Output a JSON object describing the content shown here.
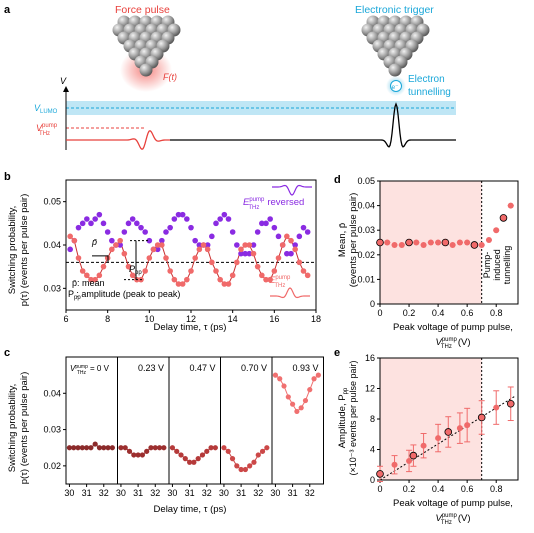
{
  "panel_a": {
    "letter": "a",
    "force_pulse": "Force pulse",
    "force_label": "F(t)",
    "electronic_trigger": "Electronic trigger",
    "electron_line1": "Electron",
    "electron_line2": "tunnelling",
    "electron_symbol": "e⁻",
    "v_axis": "V",
    "v_lumo": "V",
    "v_lumo_sub": "LUMO",
    "v_thz": "V",
    "v_thz_sup": "pump",
    "v_thz_sub": "THz",
    "colors": {
      "red": "#e8413c",
      "blue": "#1aa7d9",
      "band": "#bfe6f5"
    }
  },
  "panel_b": {
    "letter": "b",
    "ylabel1": "Switching probability,",
    "ylabel2": "p(τ) (events per pulse pair)",
    "xlabel": "Delay time, τ (ps)",
    "xticks": [
      "6",
      "8",
      "10",
      "12",
      "14",
      "16",
      "18"
    ],
    "yticks": [
      "0.03",
      "0.04",
      "0.05"
    ],
    "legend_mean": "p̄: mean",
    "legend_pp": "P   : amplitude (peak to peak)",
    "legend_pp_sub": "pp",
    "pbar": "p̄",
    "ppp": "P",
    "ppp_sub": "pp",
    "e_rev": "E",
    "e_rev_sup": "pump",
    "e_rev_sub": "THz",
    "reversed": "reversed",
    "e_norm": "E",
    "e_norm_sup": "pump",
    "e_norm_sub": "THz"
  },
  "panel_c": {
    "letter": "c",
    "ylabel1": "Switching probability,",
    "ylabel2": "p(τ) (events per pulse pair)",
    "xlabel": "Delay time, τ (ps)",
    "yticks": [
      "0.02",
      "0.03",
      "0.04"
    ],
    "xticks": [
      "30",
      "31",
      "32"
    ],
    "first_label_prefix": "V",
    "first_label_sup": "pump",
    "first_label_sub": "THz",
    "voltages": [
      "= 0 V",
      "0.23 V",
      "0.47 V",
      "0.70 V",
      "0.93 V"
    ]
  },
  "panel_d": {
    "letter": "d",
    "ylabel1": "Mean, p̄",
    "ylabel2": "(events per pulse pair)",
    "xlabel1": "Peak voltage of pump pulse,",
    "xlabel2": "V",
    "xlabel2_sup": "pump",
    "xlabel2_sub": "THz",
    "xlabel2_unit": "(V)",
    "xticks": [
      "0",
      "0.2",
      "0.4",
      "0.6",
      "0.8"
    ],
    "yticks": [
      "0",
      "0.01",
      "0.02",
      "0.03",
      "0.04",
      "0.05"
    ],
    "annot": [
      "Pump-",
      "induced",
      "tunnelling"
    ]
  },
  "panel_e": {
    "letter": "e",
    "ylabel1": "Amplitude, P",
    "ylabel1_sub": "pp",
    "ylabel2": "(×10⁻³ events per pulse pair)",
    "xlabel1": "Peak voltage of pump pulse,",
    "xlabel2": "V",
    "xlabel2_sup": "pump",
    "xlabel2_sub": "THz",
    "xlabel2_unit": "(V)",
    "xticks": [
      "0",
      "0.2",
      "0.4",
      "0.6",
      "0.8"
    ],
    "yticks": [
      "0",
      "4",
      "8",
      "12",
      "16"
    ]
  },
  "chart_data": [
    {
      "panel": "b",
      "type": "scatter",
      "xlabel": "Delay time, τ (ps)",
      "ylabel": "Switching probability, p(τ) (events per pulse pair)",
      "xlim": [
        6,
        18
      ],
      "ylim": [
        0.025,
        0.055
      ],
      "series": [
        {
          "name": "E_THz^pump reversed",
          "color": "#8a2be2",
          "x": [
            6.2,
            6.4,
            6.6,
            6.8,
            7.0,
            7.2,
            7.4,
            7.6,
            7.8,
            8.0,
            8.2,
            8.4,
            8.6,
            8.8,
            9.0,
            9.2,
            9.4,
            9.6,
            9.8,
            10.0,
            10.2,
            10.4,
            10.6,
            10.8,
            11.0,
            11.2,
            11.4,
            11.6,
            11.8,
            12.0,
            12.2,
            12.4,
            12.6,
            12.8,
            13.0,
            13.2,
            13.4,
            13.6,
            13.8,
            14.0,
            14.2,
            14.4,
            14.6,
            14.8,
            15.0,
            15.2,
            15.4,
            15.6,
            15.8,
            16.0,
            16.2,
            16.4,
            16.6,
            16.8,
            17.0,
            17.2,
            17.4,
            17.6
          ],
          "y": [
            0.039,
            0.041,
            0.044,
            0.045,
            0.046,
            0.045,
            0.046,
            0.047,
            0.045,
            0.043,
            0.041,
            0.04,
            0.04,
            0.043,
            0.045,
            0.046,
            0.045,
            0.044,
            0.043,
            0.041,
            0.039,
            0.039,
            0.041,
            0.043,
            0.044,
            0.046,
            0.047,
            0.047,
            0.046,
            0.044,
            0.041,
            0.04,
            0.04,
            0.04,
            0.042,
            0.045,
            0.046,
            0.047,
            0.046,
            0.043,
            0.04,
            0.038,
            0.038,
            0.038,
            0.04,
            0.043,
            0.045,
            0.045,
            0.046,
            0.044,
            0.042,
            0.04,
            0.038,
            0.038,
            0.04,
            0.042,
            0.044,
            0.043
          ]
        },
        {
          "name": "E_THz^pump",
          "color": "#f06a6a",
          "x": [
            6.2,
            6.4,
            6.6,
            6.8,
            7.0,
            7.2,
            7.4,
            7.6,
            7.8,
            8.0,
            8.2,
            8.4,
            8.6,
            8.8,
            9.0,
            9.2,
            9.4,
            9.6,
            9.8,
            10.0,
            10.2,
            10.4,
            10.6,
            10.8,
            11.0,
            11.2,
            11.4,
            11.6,
            11.8,
            12.0,
            12.2,
            12.4,
            12.6,
            12.8,
            13.0,
            13.2,
            13.4,
            13.6,
            13.8,
            14.0,
            14.2,
            14.4,
            14.6,
            14.8,
            15.0,
            15.2,
            15.4,
            15.6,
            15.8,
            16.0,
            16.2,
            16.4,
            16.6,
            16.8,
            17.0,
            17.2,
            17.4,
            17.6
          ],
          "y": [
            0.042,
            0.041,
            0.037,
            0.034,
            0.033,
            0.032,
            0.032,
            0.033,
            0.035,
            0.037,
            0.039,
            0.04,
            0.041,
            0.038,
            0.035,
            0.033,
            0.032,
            0.032,
            0.034,
            0.037,
            0.039,
            0.04,
            0.04,
            0.037,
            0.034,
            0.032,
            0.031,
            0.031,
            0.032,
            0.034,
            0.037,
            0.039,
            0.04,
            0.039,
            0.036,
            0.034,
            0.032,
            0.031,
            0.031,
            0.033,
            0.036,
            0.039,
            0.04,
            0.04,
            0.038,
            0.035,
            0.033,
            0.032,
            0.032,
            0.034,
            0.037,
            0.04,
            0.042,
            0.041,
            0.039,
            0.036,
            0.034,
            0.033
          ]
        }
      ],
      "mean_line": 0.036
    },
    {
      "panel": "c",
      "type": "scatter",
      "xlabel": "Delay time, τ (ps)",
      "ylim": [
        0.015,
        0.05
      ],
      "xlim": [
        29.8,
        32.8
      ],
      "series": [
        {
          "name": "= 0 V",
          "color": "#8b2a2a",
          "x": [
            30.0,
            30.25,
            30.5,
            30.75,
            31.0,
            31.25,
            31.5,
            31.75,
            32.0,
            32.25,
            32.5
          ],
          "y": [
            0.025,
            0.025,
            0.025,
            0.025,
            0.025,
            0.025,
            0.026,
            0.025,
            0.025,
            0.025,
            0.025
          ]
        },
        {
          "name": "0.23 V",
          "color": "#9c2f2f",
          "x": [
            30.0,
            30.25,
            30.5,
            30.75,
            31.0,
            31.25,
            31.5,
            31.75,
            32.0,
            32.25,
            32.5
          ],
          "y": [
            0.025,
            0.025,
            0.024,
            0.023,
            0.023,
            0.023,
            0.024,
            0.025,
            0.025,
            0.025,
            0.025
          ]
        },
        {
          "name": "0.47 V",
          "color": "#b53a3a",
          "x": [
            30.0,
            30.25,
            30.5,
            30.75,
            31.0,
            31.25,
            31.5,
            31.75,
            32.0,
            32.25,
            32.5
          ],
          "y": [
            0.025,
            0.024,
            0.023,
            0.022,
            0.021,
            0.021,
            0.022,
            0.023,
            0.024,
            0.025,
            0.025
          ]
        },
        {
          "name": "0.70 V",
          "color": "#cc4848",
          "x": [
            30.0,
            30.25,
            30.5,
            30.75,
            31.0,
            31.25,
            31.5,
            31.75,
            32.0,
            32.25,
            32.5
          ],
          "y": [
            0.025,
            0.024,
            0.022,
            0.02,
            0.019,
            0.019,
            0.02,
            0.021,
            0.023,
            0.024,
            0.025
          ]
        },
        {
          "name": "0.93 V",
          "color": "#f07070",
          "x": [
            30.0,
            30.25,
            30.5,
            30.75,
            31.0,
            31.25,
            31.5,
            31.75,
            32.0,
            32.25,
            32.5
          ],
          "y": [
            0.045,
            0.044,
            0.042,
            0.039,
            0.037,
            0.035,
            0.036,
            0.038,
            0.041,
            0.044,
            0.045
          ]
        }
      ]
    },
    {
      "panel": "d",
      "type": "scatter",
      "xlabel": "Peak voltage of pump pulse, V_THz^pump (V)",
      "ylabel": "Mean, p̄ (events per pulse pair)",
      "xlim": [
        0,
        0.95
      ],
      "ylim": [
        0,
        0.05
      ],
      "shaded_xrange": [
        0,
        0.7
      ],
      "vline": 0.7,
      "series": [
        {
          "name": "mean",
          "color": "#f06a6a",
          "x": [
            0.0,
            0.05,
            0.1,
            0.15,
            0.2,
            0.25,
            0.3,
            0.35,
            0.4,
            0.45,
            0.5,
            0.55,
            0.6,
            0.65,
            0.7,
            0.75,
            0.8,
            0.85,
            0.9
          ],
          "y": [
            0.025,
            0.025,
            0.024,
            0.024,
            0.025,
            0.025,
            0.024,
            0.025,
            0.025,
            0.025,
            0.024,
            0.025,
            0.025,
            0.024,
            0.024,
            0.026,
            0.03,
            0.035,
            0.04
          ],
          "highlighted": [
            0,
            4,
            9,
            13,
            17
          ]
        }
      ]
    },
    {
      "panel": "e",
      "type": "scatter",
      "xlabel": "Peak voltage of pump pulse, V_THz^pump (V)",
      "ylabel": "Amplitude, P_pp (×10⁻³ events per pulse pair)",
      "xlim": [
        0,
        0.95
      ],
      "ylim": [
        0,
        16
      ],
      "shaded_xrange": [
        0,
        0.7
      ],
      "vline": 0.7,
      "series": [
        {
          "name": "amplitude",
          "color": "#f06a6a",
          "x": [
            0.0,
            0.1,
            0.2,
            0.23,
            0.3,
            0.4,
            0.47,
            0.55,
            0.6,
            0.7,
            0.8,
            0.9
          ],
          "y": [
            0.8,
            2.0,
            2.5,
            3.2,
            4.5,
            5.5,
            6.3,
            6.8,
            7.2,
            8.2,
            9.5,
            10.0
          ],
          "err": [
            1.0,
            1.2,
            1.4,
            1.4,
            1.6,
            1.8,
            2.0,
            2.0,
            2.2,
            2.2,
            2.2,
            2.2
          ],
          "highlighted": [
            0,
            3,
            6,
            9,
            11
          ]
        }
      ],
      "fit_line": {
        "x": [
          0.0,
          0.93
        ],
        "y": [
          0.0,
          11.0
        ]
      }
    }
  ]
}
